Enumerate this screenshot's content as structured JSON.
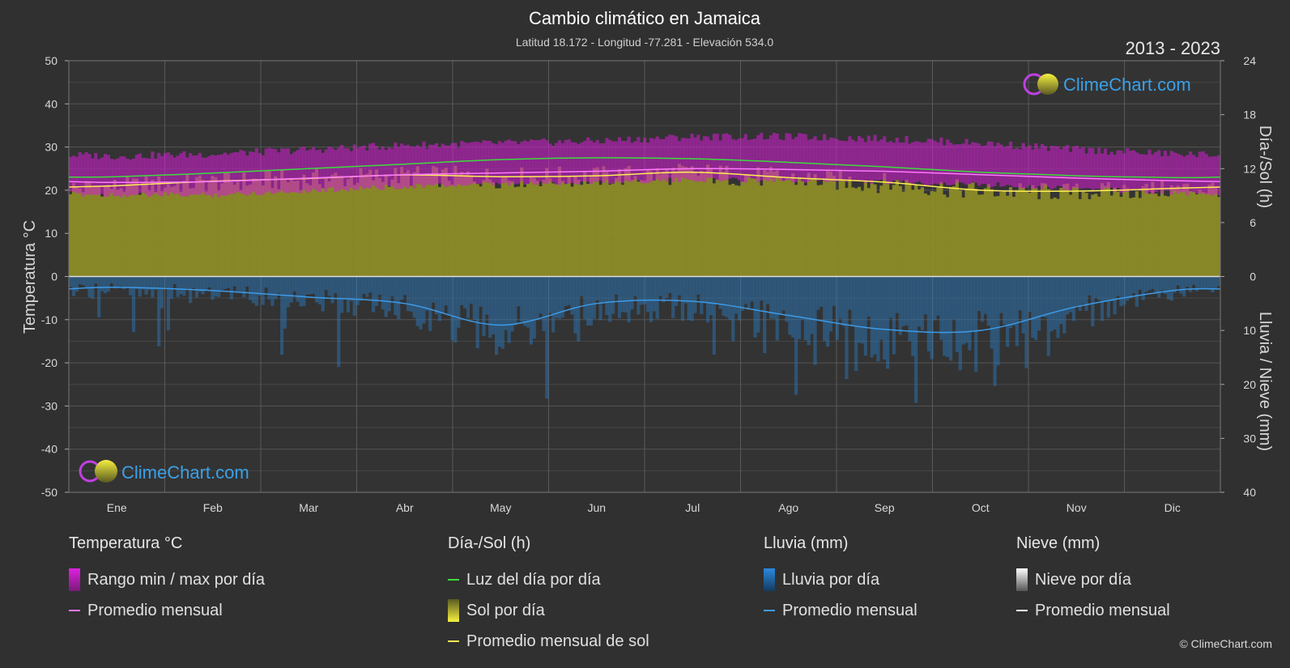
{
  "header": {
    "title": "Cambio climático en Jamaica",
    "subtitle": "Latitud 18.172 - Longitud -77.281 - Elevación 534.0",
    "years": "2013 - 2023"
  },
  "brand": {
    "name": "ClimeChart.com",
    "copyright": "© ClimeChart.com"
  },
  "chart_data": {
    "type": "area",
    "categories": [
      "Ene",
      "Feb",
      "Mar",
      "Abr",
      "May",
      "Jun",
      "Jul",
      "Ago",
      "Sep",
      "Oct",
      "Nov",
      "Dic"
    ],
    "left_axis": {
      "label": "Temperatura °C",
      "ylim": [
        -50,
        50
      ],
      "ticks": [
        50,
        40,
        30,
        20,
        10,
        0,
        -10,
        -20,
        -30,
        -40,
        -50
      ]
    },
    "right_axis_top": {
      "label": "Día-/Sol (h)",
      "ylim": [
        0,
        24
      ],
      "ticks": [
        24,
        18,
        12,
        6,
        0
      ]
    },
    "right_axis_bottom": {
      "label": "Lluvia / Nieve (mm)",
      "ylim": [
        0,
        40
      ],
      "ticks": [
        0,
        10,
        20,
        30,
        40
      ]
    },
    "grid": true,
    "series": [
      {
        "name": "Promedio mensual",
        "group": "temperature",
        "unit": "°C",
        "values": [
          21.8,
          22.0,
          22.8,
          23.6,
          24.0,
          24.4,
          25.0,
          24.8,
          24.4,
          23.6,
          22.8,
          22.2
        ]
      },
      {
        "name": "Rango min / max por día",
        "group": "temperature",
        "unit": "°C",
        "min": [
          19.5,
          19.5,
          20.5,
          21.5,
          22.0,
          22.5,
          23.0,
          23.0,
          22.5,
          22.0,
          21.0,
          20.0
        ],
        "max": [
          27.0,
          27.5,
          28.5,
          29.5,
          30.0,
          30.5,
          31.5,
          31.5,
          31.0,
          30.0,
          28.5,
          27.5
        ]
      },
      {
        "name": "Luz del día por día",
        "group": "sun",
        "unit": "h",
        "values": [
          11.1,
          11.5,
          12.0,
          12.5,
          13.0,
          13.2,
          13.1,
          12.7,
          12.2,
          11.6,
          11.2,
          11.0
        ]
      },
      {
        "name": "Promedio mensual de sol",
        "group": "sun",
        "unit": "h",
        "values": [
          10.1,
          10.6,
          10.9,
          11.3,
          11.1,
          11.2,
          11.6,
          11.0,
          10.5,
          9.6,
          9.5,
          9.8
        ]
      },
      {
        "name": "Promedio mensual",
        "group": "rain",
        "unit": "mm",
        "values": [
          2.0,
          2.6,
          3.8,
          5.0,
          9.0,
          5.0,
          4.6,
          7.2,
          9.8,
          10.0,
          5.6,
          2.6
        ]
      }
    ],
    "legend_placement": "bottom"
  },
  "legend": {
    "temperature": {
      "heading": "Temperatura °C",
      "items": [
        "Rango min / max por día",
        "Promedio mensual"
      ]
    },
    "sun": {
      "heading": "Día-/Sol (h)",
      "items": [
        "Luz del día por día",
        "Sol por día",
        "Promedio mensual de sol"
      ]
    },
    "rain": {
      "heading": "Lluvia (mm)",
      "items": [
        "Lluvia por día",
        "Promedio mensual"
      ]
    },
    "snow": {
      "heading": "Nieve (mm)",
      "items": [
        "Nieve por día",
        "Promedio mensual"
      ]
    }
  },
  "colors": {
    "background": "#303030",
    "temp_range": "#d21ed2",
    "temp_avg": "#ff78ff",
    "daylight": "#3cdc3c",
    "sunshine_fill": "#8c8c28",
    "sunshine_avg": "#ffee55",
    "rain": "#2a7cc4",
    "rain_avg": "#3d9be8",
    "snow": "#ffffff"
  }
}
